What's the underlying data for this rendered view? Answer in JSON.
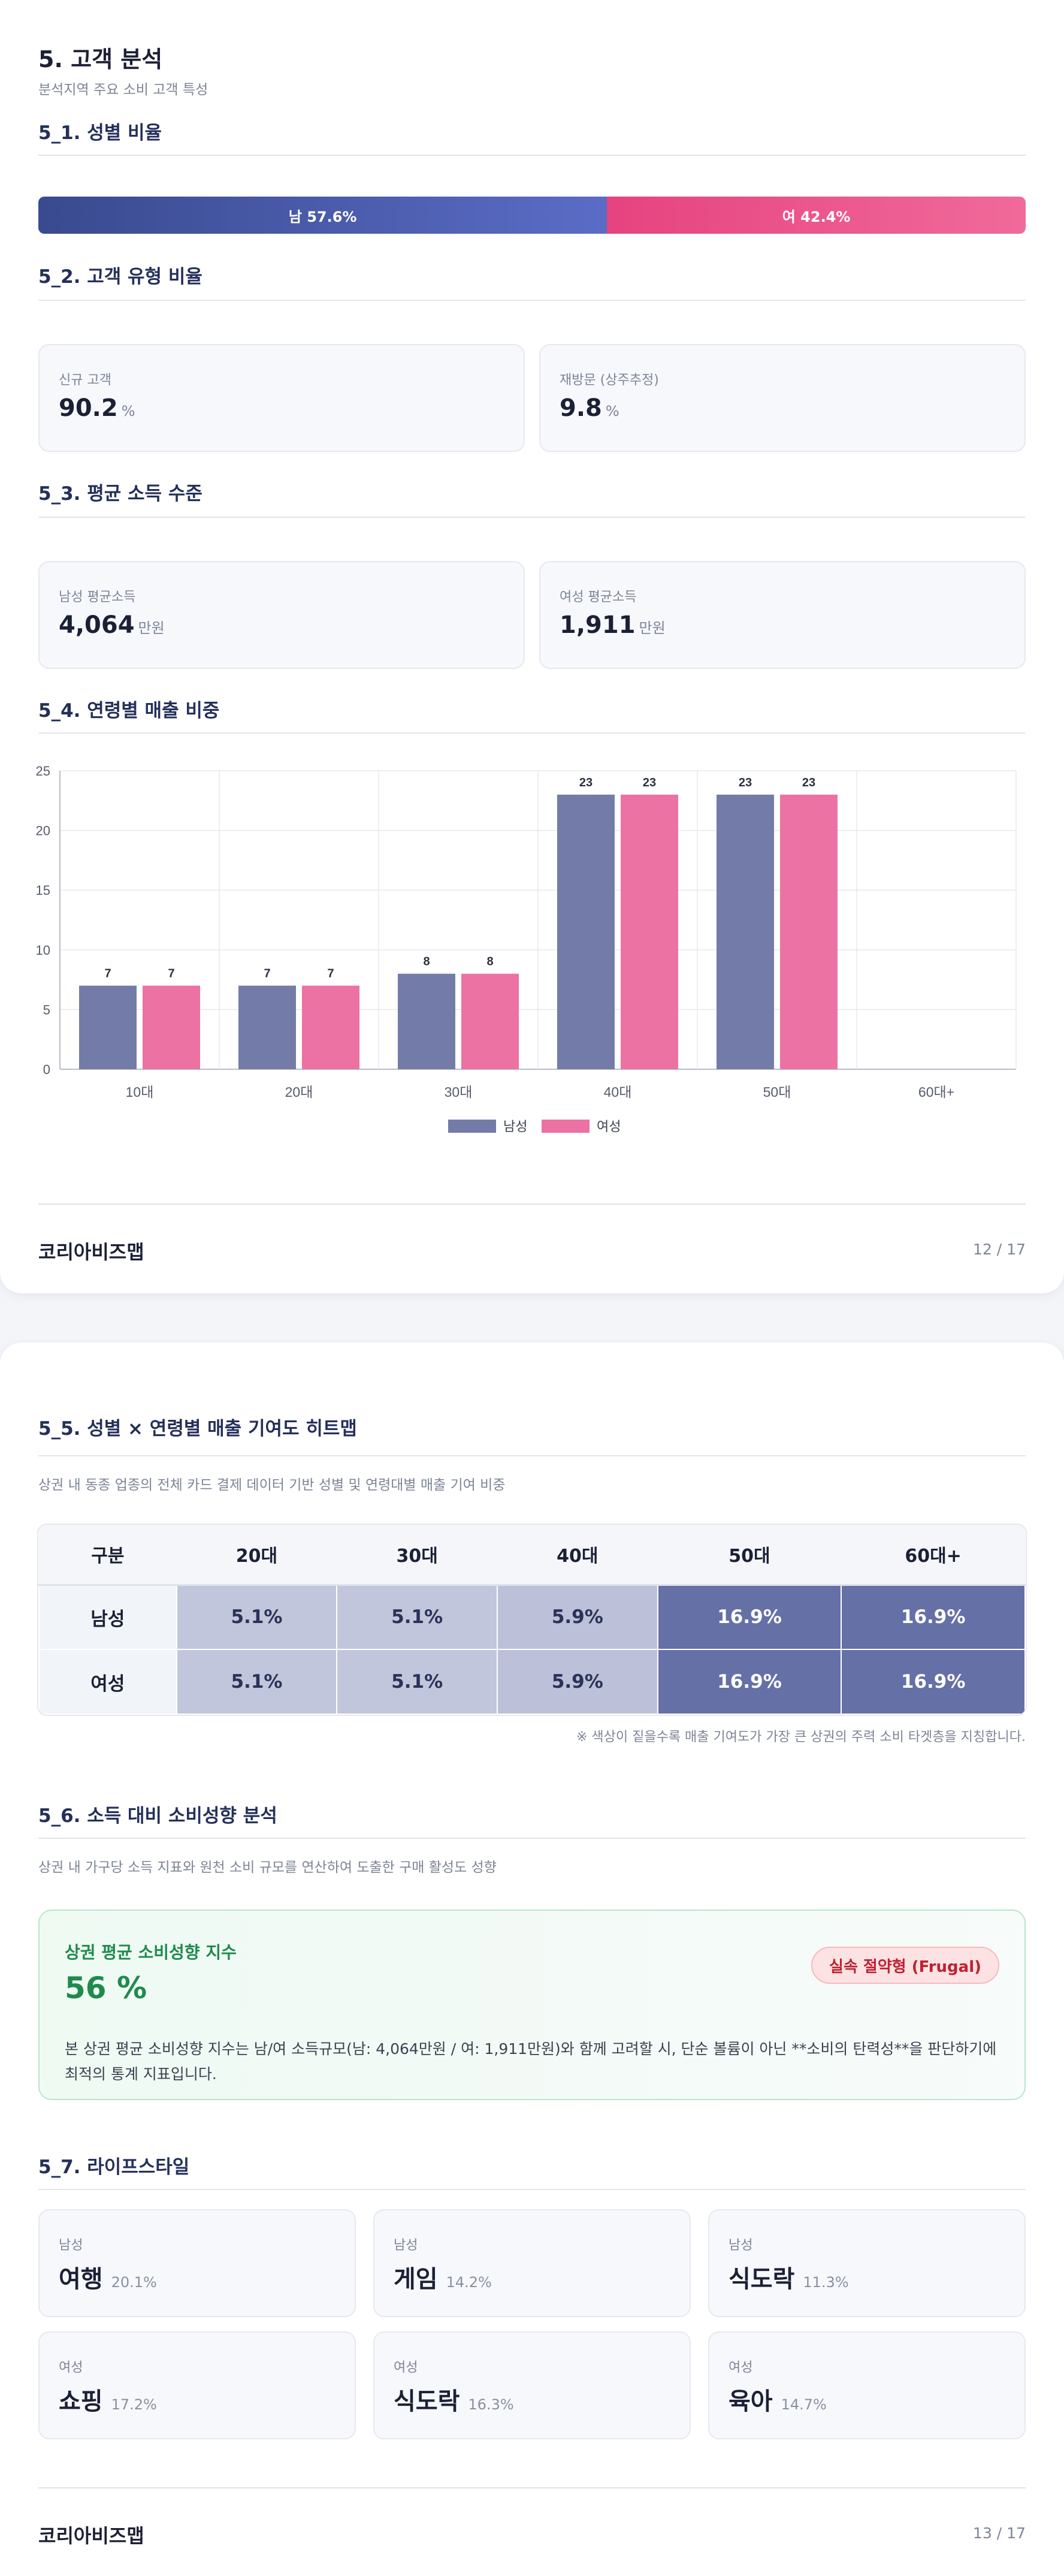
{
  "page1": {
    "title": "5. 고객 분석",
    "subtitle": "분석지역 주요 소비 고객 특성",
    "sec_5_1": {
      "title": "5_1. 성별 비율",
      "male_label": "남 57.6%",
      "female_label": "여 42.4%",
      "male_pct": 57.6,
      "female_pct": 42.4,
      "male_color": "#4a5aab",
      "female_color": "#ec5a8e"
    },
    "sec_5_2": {
      "title": "5_2. 고객 유형 비율",
      "cards": [
        {
          "label": "신규 고객",
          "value": "90.2",
          "unit": "%"
        },
        {
          "label": "재방문 (상주추정)",
          "value": "9.8",
          "unit": "%"
        }
      ]
    },
    "sec_5_3": {
      "title": "5_3. 평균 소득 수준",
      "cards": [
        {
          "label": "남성 평균소득",
          "value": "4,064",
          "unit": "만원"
        },
        {
          "label": "여성 평균소득",
          "value": "1,911",
          "unit": "만원"
        }
      ]
    },
    "sec_5_4": {
      "title": "5_4. 연령별 매출 비중"
    },
    "footer": {
      "brand": "코리아비즈맵",
      "page": "12 / 17"
    }
  },
  "chart_data": {
    "type": "bar",
    "categories": [
      "10대",
      "20대",
      "30대",
      "40대",
      "50대",
      "60대+"
    ],
    "series": [
      {
        "name": "남성",
        "values": [
          7,
          7,
          8,
          23,
          23,
          null
        ],
        "labels": [
          "7",
          "7",
          "8",
          "23",
          "23",
          ""
        ],
        "color": "#737ba8"
      },
      {
        "name": "여성",
        "values": [
          7,
          7,
          8,
          23,
          23,
          null
        ],
        "labels": [
          "7",
          "7",
          "8",
          "23",
          "23",
          ""
        ],
        "color": "#ec72a3"
      }
    ],
    "ylim": [
      0,
      25
    ],
    "yticks": [
      "0",
      "5",
      "10",
      "15",
      "20",
      "25"
    ],
    "grid": true,
    "legend": "bottom"
  },
  "page2": {
    "sec_5_5": {
      "title": "5_5. 성별 × 연령별 매출 기여도 히트맵",
      "desc": "상권 내 동종 업종의 전체 카드 결제 데이터 기반 성별 및 연령대별 매출 기여 비중",
      "header": [
        "구분",
        "20대",
        "30대",
        "40대",
        "50대",
        "60대+"
      ],
      "rows": [
        {
          "label": "남성",
          "cells": [
            "5.1%",
            "5.1%",
            "5.9%",
            "16.9%",
            "16.9%"
          ]
        },
        {
          "label": "여성",
          "cells": [
            "5.1%",
            "5.1%",
            "5.9%",
            "16.9%",
            "16.9%"
          ]
        }
      ],
      "note": "※ 색상이 짙을수록 매출 기여도가 가장 큰 상권의 주력 소비 타겟층을 지칭합니다."
    },
    "sec_5_6": {
      "title": "5_6. 소득 대비 소비성향 분석",
      "desc": "상권 내 가구당 소득 지표와 원천 소비 규모를 연산하여 도출한 구매 활성도 성향",
      "box_title": "상권 평균 소비성향 지수",
      "box_value": "56 %",
      "badge": "실속 절약형 (Frugal)",
      "box_desc": "본 상권 평균 소비성향 지수는 남/여 소득규모(남: 4,064만원 / 여: 1,911만원)와 함께 고려할 시, 단순 볼륨이 아닌 **소비의 탄력성**을 판단하기에 최적의 통계 지표입니다."
    },
    "sec_5_7": {
      "title": "5_7. 라이프스타일",
      "cards": [
        {
          "gender": "남성",
          "name": "여행",
          "pct": "20.1%"
        },
        {
          "gender": "남성",
          "name": "게임",
          "pct": "14.2%"
        },
        {
          "gender": "남성",
          "name": "식도락",
          "pct": "11.3%"
        },
        {
          "gender": "여성",
          "name": "쇼핑",
          "pct": "17.2%"
        },
        {
          "gender": "여성",
          "name": "식도락",
          "pct": "16.3%"
        },
        {
          "gender": "여성",
          "name": "육아",
          "pct": "14.7%"
        }
      ]
    },
    "footer": {
      "brand": "코리아비즈맵",
      "page": "13 / 17"
    }
  }
}
